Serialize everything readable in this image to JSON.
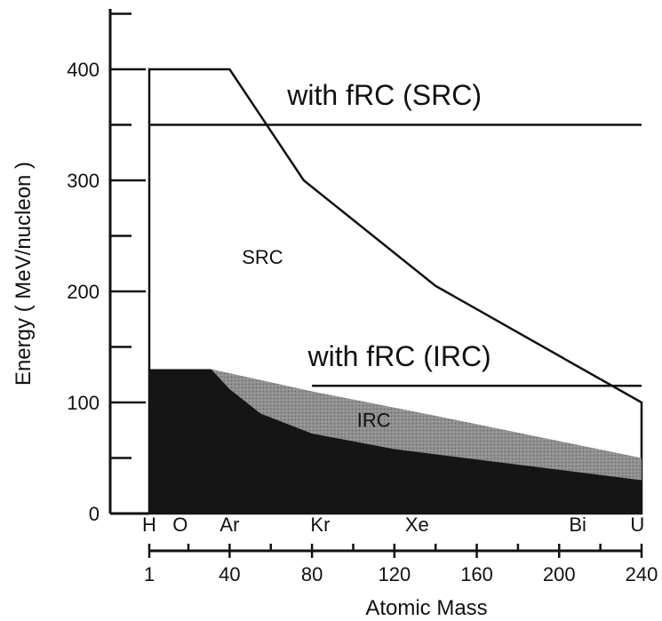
{
  "chart_data": {
    "type": "area",
    "xlabel": "Atomic Mass",
    "ylabel": "Energy ( MeV/nucleon )",
    "xlim": [
      1,
      240
    ],
    "ylim": [
      0,
      400
    ],
    "x_ticks": [
      1,
      40,
      80,
      120,
      160,
      200,
      240
    ],
    "y_ticks": [
      0,
      100,
      200,
      300,
      400
    ],
    "y_minor_ticks": [
      50,
      150,
      250,
      350,
      450
    ],
    "x_minor_ticks": [
      20,
      60,
      100,
      140,
      180,
      220
    ],
    "elements": [
      {
        "label": "H",
        "x": 1
      },
      {
        "label": "O",
        "x": 16
      },
      {
        "label": "Ar",
        "x": 40
      },
      {
        "label": "Kr",
        "x": 84
      },
      {
        "label": "Xe",
        "x": 131
      },
      {
        "label": "Bi",
        "x": 209
      },
      {
        "label": "U",
        "x": 238
      }
    ],
    "regions": [
      {
        "name": "SRC",
        "label": "SRC",
        "color": "#ffffff",
        "label_x": 56,
        "label_y": 225,
        "boundary": [
          [
            1,
            0
          ],
          [
            1,
            400
          ],
          [
            40,
            400
          ],
          [
            76,
            300
          ],
          [
            140,
            205
          ],
          [
            240,
            100
          ],
          [
            240,
            0
          ]
        ]
      },
      {
        "name": "IRC",
        "label": "IRC",
        "color": "#8a8a8a",
        "label_x": 110,
        "label_y": 78,
        "boundary": [
          [
            1,
            130
          ],
          [
            31,
            130
          ],
          [
            80,
            110
          ],
          [
            140,
            88
          ],
          [
            240,
            50
          ],
          [
            240,
            0
          ],
          [
            1,
            0
          ]
        ]
      },
      {
        "name": "below-IRC",
        "label": "",
        "color": "#151515",
        "boundary": [
          [
            1,
            130
          ],
          [
            31,
            130
          ],
          [
            40,
            112
          ],
          [
            55,
            90
          ],
          [
            80,
            72
          ],
          [
            120,
            58
          ],
          [
            180,
            44
          ],
          [
            240,
            30
          ],
          [
            240,
            0
          ],
          [
            1,
            0
          ]
        ]
      }
    ],
    "reference_lines": [
      {
        "label": "with fRC (SRC)",
        "y": 350,
        "x_start": 1,
        "x_end": 240,
        "label_x": 68,
        "label_y": 368
      },
      {
        "label": "with fRC (IRC)",
        "y": 115,
        "x_start": 80,
        "x_end": 240,
        "label_x": 78,
        "label_y": 133
      }
    ],
    "grid": false
  }
}
